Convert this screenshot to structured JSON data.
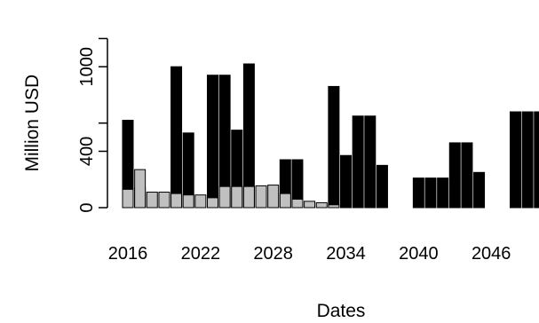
{
  "chart_data": {
    "type": "bar",
    "stacked": false,
    "xlabel": "Dates",
    "ylabel": "Million USD",
    "ylim": [
      0,
      1350
    ],
    "x_ticks": [
      "2016",
      "2022",
      "2028",
      "2034",
      "2040",
      "2046"
    ],
    "y_ticks": [
      0,
      400,
      600,
      1000,
      1200
    ],
    "y_ticks_labeled": [
      0,
      400,
      1000
    ],
    "grid": false,
    "colors": {
      "series_a": "#000000",
      "series_b": "#c0c0c0"
    },
    "categories": [
      "2016",
      "2017",
      "2018",
      "2019",
      "2020",
      "2021",
      "2022",
      "2023",
      "2024",
      "2025",
      "2026",
      "2027",
      "2028",
      "2029",
      "2030",
      "2031",
      "2032",
      "2033",
      "2034",
      "2035",
      "2036",
      "2037",
      "2038",
      "2039",
      "2040",
      "2041",
      "2042",
      "2043",
      "2044",
      "2045",
      "2046",
      "2047",
      "2048",
      "2049",
      "2050",
      "2051"
    ],
    "series": [
      {
        "values": [
          620,
          140,
          0,
          0,
          1000,
          530,
          0,
          940,
          940,
          550,
          1020,
          0,
          0,
          340,
          340,
          0,
          0,
          860,
          370,
          650,
          650,
          300,
          0,
          0,
          210,
          210,
          210,
          460,
          460,
          250,
          0,
          0,
          680,
          680,
          680,
          680
        ]
      },
      {
        "values": [
          130,
          270,
          110,
          110,
          100,
          90,
          90,
          70,
          150,
          150,
          150,
          155,
          160,
          100,
          60,
          45,
          35,
          20,
          0,
          0,
          0,
          0,
          0,
          0,
          0,
          0,
          0,
          0,
          0,
          0,
          0,
          0,
          0,
          0,
          0,
          0
        ]
      }
    ]
  }
}
